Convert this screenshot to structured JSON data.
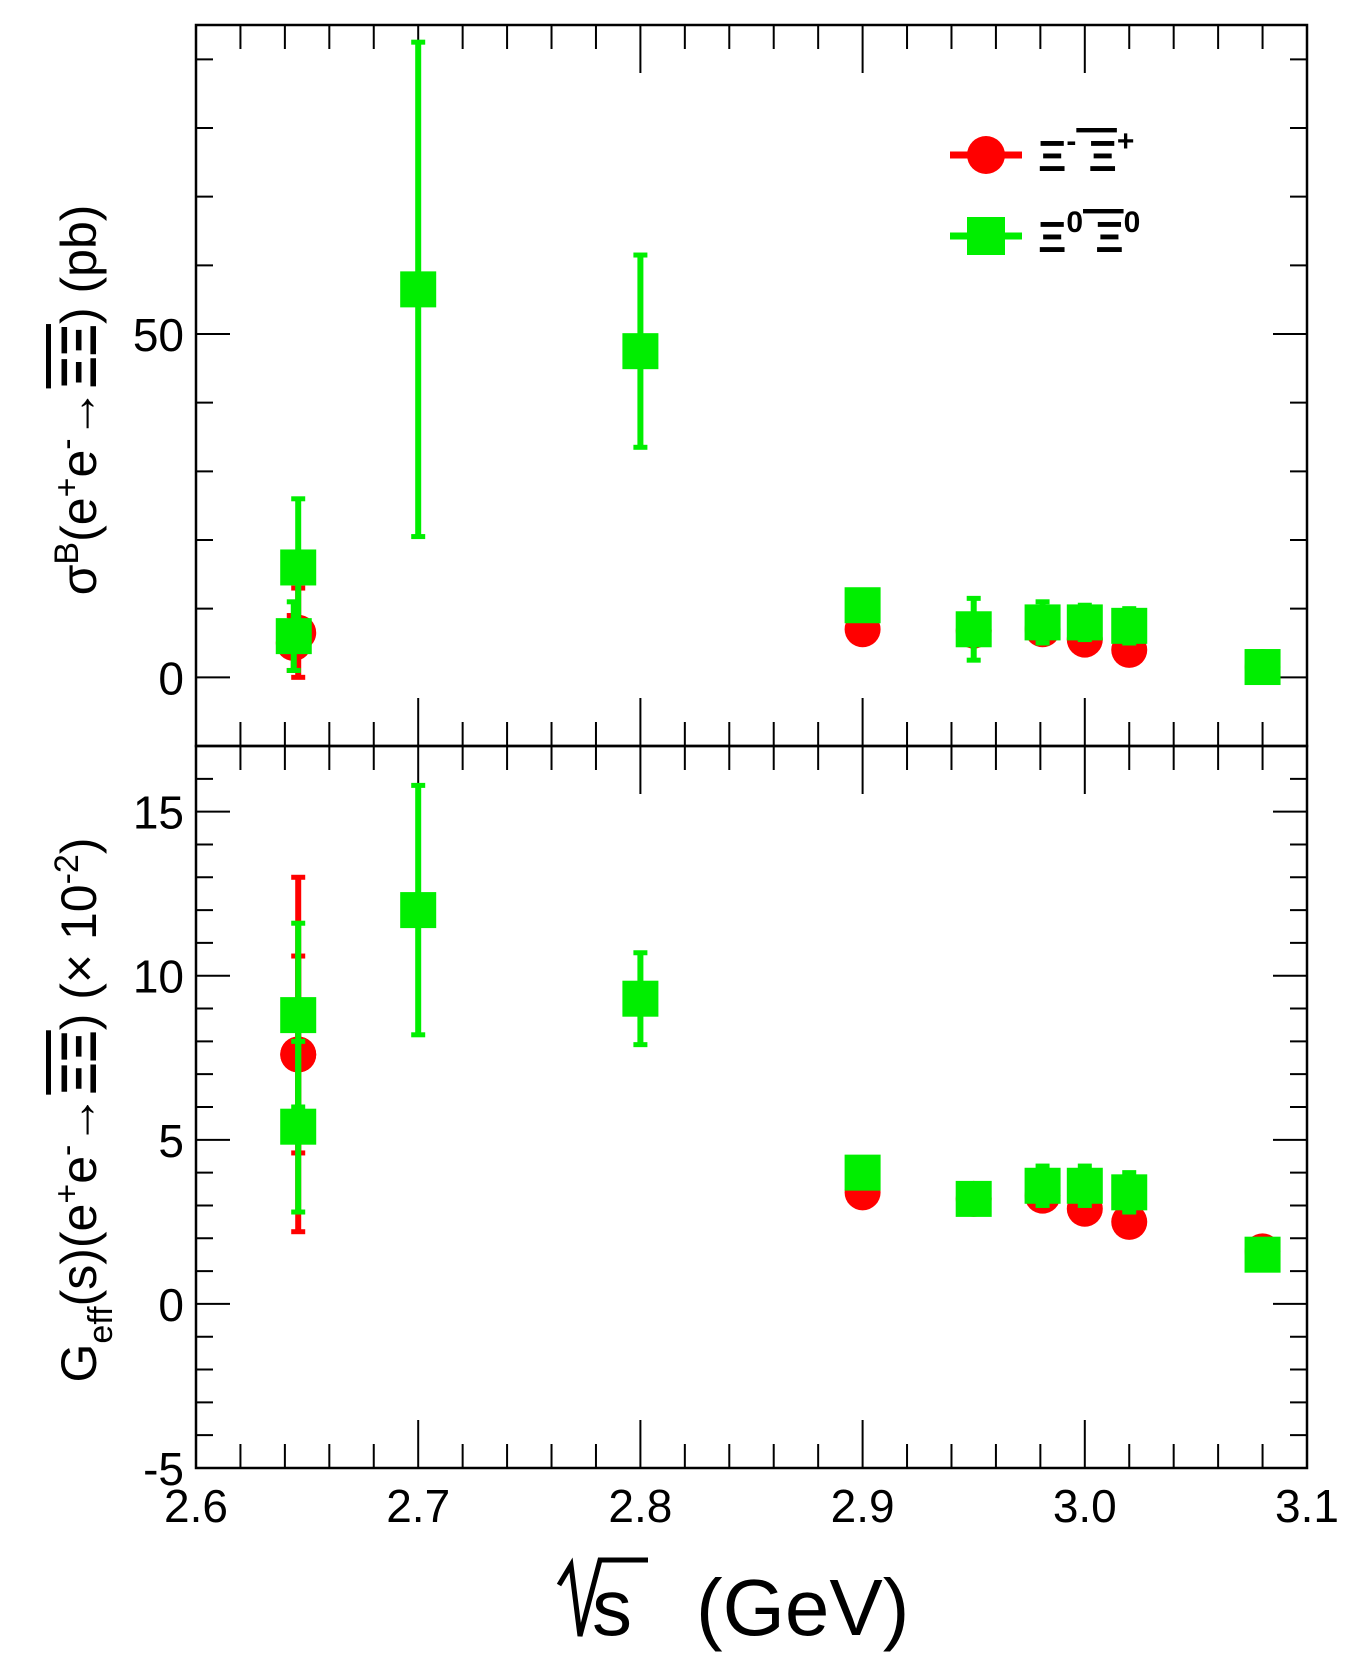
{
  "chart_data": {
    "type": "scatter",
    "x": {
      "label": "√s (GeV)",
      "label_parts": [
        "s",
        "(GeV)"
      ],
      "range": [
        2.6,
        3.1
      ],
      "ticks": [
        2.6,
        2.7,
        2.8,
        2.9,
        3.0,
        3.1
      ],
      "tick_labels": [
        "2.6",
        "2.7",
        "2.8",
        "2.9",
        "3.0",
        "3.1"
      ]
    },
    "legend": {
      "position": "top-right",
      "entries": [
        {
          "series": "xi_minus",
          "label_base": "Ξ",
          "label_sup": "-",
          "label_base2": "Ξ",
          "label_sup2": "+"
        },
        {
          "series": "xi_zero",
          "label_base": "Ξ",
          "label_sup": "0",
          "label_base2": "Ξ",
          "label_sup2": "0"
        }
      ]
    },
    "colors": {
      "xi_minus": "#ff0000",
      "xi_zero": "#00ee00",
      "axes": "#000000"
    },
    "panels": [
      {
        "id": "top",
        "ylabel": "σB(e+e-→ΞΞ) (pb)",
        "ylabel_parts": {
          "sigma": "σ",
          "sup_B": "B",
          "open": "(e",
          "sup_plus": "+",
          "e2": "e",
          "sup_minus": "-",
          "arrow": "→",
          "xixi": "ΞΞ",
          "close": ") (pb)"
        },
        "yrange": [
          -10,
          95
        ],
        "yticks": [
          0,
          50
        ],
        "ytick_labels": [
          "0",
          "50"
        ],
        "series": [
          {
            "name": "Ξ-Ξ+",
            "key": "xi_minus",
            "marker": "circle",
            "points": [
              {
                "x": 2.644,
                "y": 5.0,
                "err": 4.0
              },
              {
                "x": 2.646,
                "y": 6.5,
                "err": 6.5
              },
              {
                "x": 2.9,
                "y": 7.0,
                "err": 0.6
              },
              {
                "x": 2.95,
                "y": 6.8,
                "err": 0.6
              },
              {
                "x": 2.981,
                "y": 7.0,
                "err": 0.6
              },
              {
                "x": 3.0,
                "y": 5.5,
                "err": 0.5
              },
              {
                "x": 3.02,
                "y": 4.0,
                "err": 0.4
              },
              {
                "x": 3.08,
                "y": 1.5,
                "err": 0.2
              }
            ]
          },
          {
            "name": "Ξ0Ξ0",
            "key": "xi_zero",
            "marker": "square",
            "points": [
              {
                "x": 2.644,
                "y": 6.0,
                "err": 5.0
              },
              {
                "x": 2.646,
                "y": 16.0,
                "err": 10.0
              },
              {
                "x": 2.7,
                "y": 56.5,
                "err": 36.0
              },
              {
                "x": 2.8,
                "y": 47.5,
                "err": 14.0
              },
              {
                "x": 2.9,
                "y": 10.5,
                "err": 1.5
              },
              {
                "x": 2.95,
                "y": 7.0,
                "err": 4.5
              },
              {
                "x": 2.981,
                "y": 8.0,
                "err": 3.0
              },
              {
                "x": 3.0,
                "y": 8.0,
                "err": 2.5
              },
              {
                "x": 3.02,
                "y": 7.5,
                "err": 2.5
              },
              {
                "x": 3.08,
                "y": 1.5,
                "err": 0.5
              }
            ]
          }
        ]
      },
      {
        "id": "bottom",
        "ylabel": "Geff(s)(e+e-→ΞΞ) (× 10-2)",
        "ylabel_parts": {
          "G": "G",
          "sub_eff": "eff",
          "s": "(s)(e",
          "sup_plus": "+",
          "e2": "e",
          "sup_minus": "-",
          "arrow": "→",
          "xixi": "ΞΞ",
          "close": ") (× 10",
          "sup_exp": "-2",
          "end": ")"
        },
        "yrange": [
          -5,
          17
        ],
        "yticks": [
          -5,
          0,
          5,
          10,
          15
        ],
        "ytick_labels": [
          "-5",
          "0",
          "5",
          "10",
          "15"
        ],
        "series": [
          {
            "name": "Ξ-Ξ+",
            "key": "xi_minus",
            "marker": "circle",
            "points": [
              {
                "x": 2.646,
                "y": 7.6,
                "err": 3.0
              },
              {
                "x": 2.646,
                "y": 7.6,
                "err": 5.4
              },
              {
                "x": 2.9,
                "y": 3.4,
                "err": 0.1
              },
              {
                "x": 2.95,
                "y": 3.2,
                "err": 0.1
              },
              {
                "x": 2.981,
                "y": 3.3,
                "err": 0.1
              },
              {
                "x": 3.0,
                "y": 2.9,
                "err": 0.1
              },
              {
                "x": 3.02,
                "y": 2.5,
                "err": 0.1
              },
              {
                "x": 3.08,
                "y": 1.6,
                "err": 0.1
              }
            ]
          },
          {
            "name": "Ξ0Ξ0",
            "key": "xi_zero",
            "marker": "square",
            "points": [
              {
                "x": 2.646,
                "y": 8.8,
                "err": 2.8
              },
              {
                "x": 2.646,
                "y": 5.4,
                "err": 2.6
              },
              {
                "x": 2.7,
                "y": 12.0,
                "err": 3.8
              },
              {
                "x": 2.8,
                "y": 9.3,
                "err": 1.4
              },
              {
                "x": 2.9,
                "y": 4.0,
                "err": 0.2
              },
              {
                "x": 2.95,
                "y": 3.2,
                "err": 0.2
              },
              {
                "x": 2.981,
                "y": 3.6,
                "err": 0.6
              },
              {
                "x": 3.0,
                "y": 3.6,
                "err": 0.6
              },
              {
                "x": 3.02,
                "y": 3.4,
                "err": 0.6
              },
              {
                "x": 3.08,
                "y": 1.5,
                "err": 0.2
              }
            ]
          }
        ]
      }
    ]
  }
}
